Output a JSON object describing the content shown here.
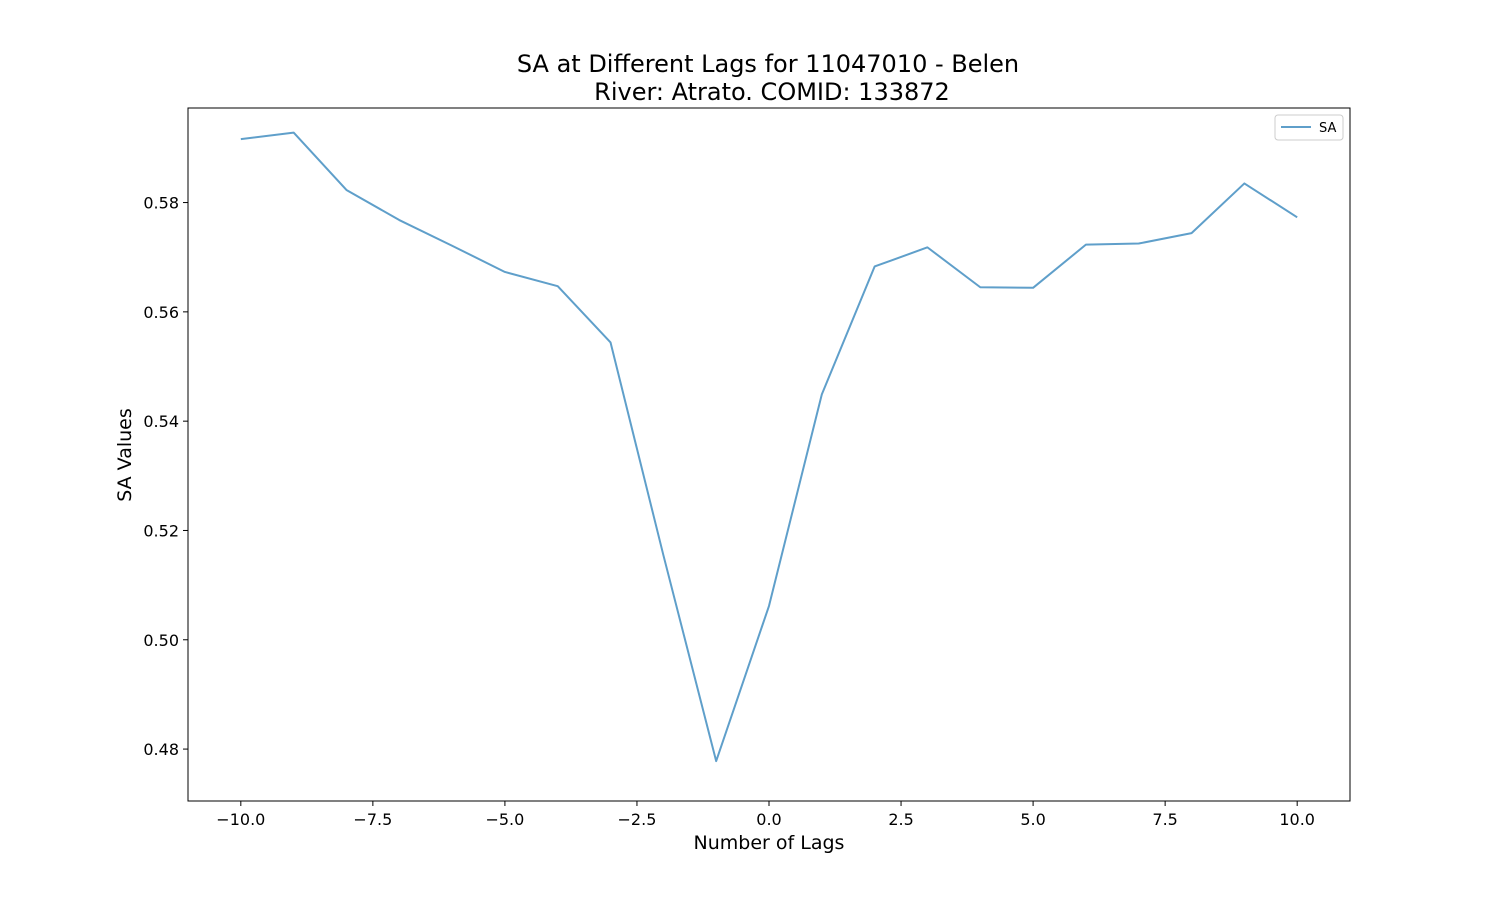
{
  "chart_data": {
    "type": "line",
    "title_line1": "SA at Different Lags for 11047010 - Belen",
    "title_line2": "River: Atrato. COMID: 133872",
    "xlabel": "Number of Lags",
    "ylabel": "SA Values",
    "xlim": [
      -11,
      11
    ],
    "ylim": [
      0.4705,
      0.5973
    ],
    "xticks": [
      -10.0,
      -7.5,
      -5.0,
      -2.5,
      0.0,
      2.5,
      5.0,
      7.5,
      10.0
    ],
    "xtick_labels": [
      "−10.0",
      "−7.5",
      "−5.0",
      "−2.5",
      "0.0",
      "2.5",
      "5.0",
      "7.5",
      "10.0"
    ],
    "yticks": [
      0.48,
      0.5,
      0.52,
      0.54,
      0.56,
      0.58
    ],
    "ytick_labels": [
      "0.48",
      "0.50",
      "0.52",
      "0.54",
      "0.56",
      "0.58"
    ],
    "grid": false,
    "legend_position": "top-right",
    "series": [
      {
        "name": "SA",
        "color": "#5f9fca",
        "x": [
          -10,
          -9,
          -8,
          -7,
          -6,
          -5,
          -4,
          -3,
          -2,
          -1,
          0,
          1,
          2,
          3,
          4,
          5,
          6,
          7,
          8,
          9,
          10
        ],
        "y": [
          0.5916,
          0.5928,
          0.5823,
          0.5768,
          0.5721,
          0.5673,
          0.5647,
          0.5544,
          0.5155,
          0.4778,
          0.5062,
          0.5449,
          0.5683,
          0.5718,
          0.5645,
          0.5644,
          0.5723,
          0.5725,
          0.5744,
          0.5835,
          0.5773
        ]
      }
    ]
  }
}
